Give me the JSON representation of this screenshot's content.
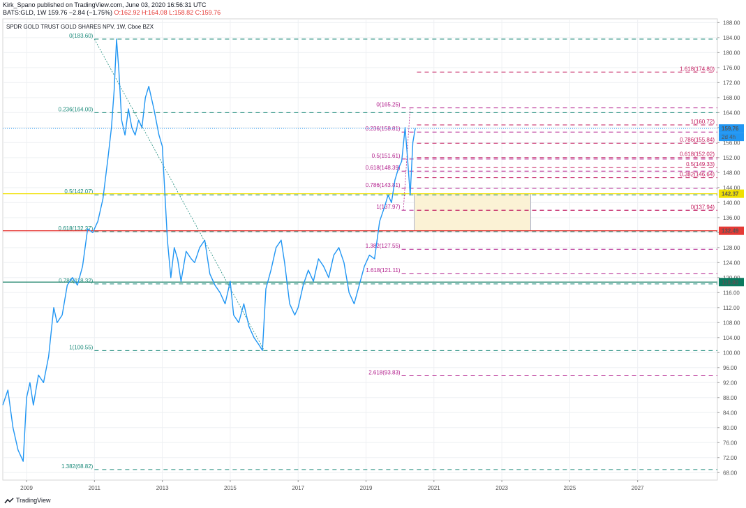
{
  "header": {
    "line1": "Kirk_Spano published on TradingView.com, June 03, 2020 16:56:31 UTC",
    "symbol": "BATS:GLD, 1W",
    "last": "159.76",
    "change": "−2.84 (−1.75%)",
    "o_label": "O:",
    "o": "162.92",
    "h_label": "H:",
    "h": "164.08",
    "l_label": "L:",
    "l": "158.82",
    "c_label": "C:",
    "c": "159.76"
  },
  "legend_title": "SPDR GOLD TRUST GOLD SHARES NPV, 1W, Cboe BZX",
  "footer": {
    "brand": "TradingView"
  },
  "colors": {
    "price": "#2196f3",
    "teal": "#1b8a7a",
    "magenta": "#b01a8a",
    "pink": "#c2185b",
    "yellow": "#f0e000",
    "red": "#e53935",
    "green": "#0b7a5f",
    "zone": "#fbf2d5"
  },
  "chart_data": {
    "type": "line",
    "title": "SPDR GOLD TRUST GOLD SHARES NPV, 1W, Cboe BZX",
    "xlabel": "",
    "ylabel": "",
    "ylim": [
      66,
      189
    ],
    "xlim": [
      2008.3,
      2029.35
    ],
    "x_ticks": [
      "2009",
      "2011",
      "2013",
      "2015",
      "2017",
      "2019",
      "2021",
      "2023",
      "2025",
      "2027"
    ],
    "y_ticks": [
      "188.00",
      "184.00",
      "180.00",
      "176.00",
      "172.00",
      "168.00",
      "164.00",
      "160.00",
      "156.00",
      "152.00",
      "148.00",
      "144.00",
      "140.00",
      "136.00",
      "132.00",
      "128.00",
      "124.00",
      "120.00",
      "116.00",
      "112.00",
      "108.00",
      "104.00",
      "100.00",
      "96.00",
      "92.00",
      "88.00",
      "84.00",
      "80.00",
      "76.00",
      "72.00",
      "68.00"
    ],
    "grid": true,
    "series": [
      {
        "x": [
          2008.3,
          2008.45,
          2008.6,
          2008.75,
          2008.9,
          2009.0,
          2009.1,
          2009.2,
          2009.35,
          2009.5,
          2009.65,
          2009.8,
          2009.9,
          2010.05,
          2010.2,
          2010.35,
          2010.5,
          2010.65,
          2010.8,
          2010.95,
          2011.1,
          2011.25,
          2011.4,
          2011.5,
          2011.58,
          2011.65,
          2011.72,
          2011.8,
          2011.9,
          2012.0,
          2012.1,
          2012.2,
          2012.3,
          2012.4,
          2012.5,
          2012.6,
          2012.75,
          2012.9,
          2013.0,
          2013.15,
          2013.25,
          2013.35,
          2013.45,
          2013.55,
          2013.7,
          2013.85,
          2013.95,
          2014.1,
          2014.25,
          2014.4,
          2014.55,
          2014.7,
          2014.85,
          2015.0,
          2015.1,
          2015.25,
          2015.4,
          2015.55,
          2015.7,
          2015.85,
          2015.95,
          2016.05,
          2016.2,
          2016.35,
          2016.5,
          2016.6,
          2016.75,
          2016.9,
          2017.0,
          2017.15,
          2017.3,
          2017.45,
          2017.6,
          2017.75,
          2017.9,
          2018.05,
          2018.2,
          2018.35,
          2018.5,
          2018.65,
          2018.8,
          2018.95,
          2019.1,
          2019.25,
          2019.4,
          2019.55,
          2019.65,
          2019.75,
          2019.85,
          2019.95,
          2020.05,
          2020.15,
          2020.22,
          2020.3,
          2020.38,
          2020.45
        ],
        "values": [
          86,
          90,
          80,
          74,
          71,
          88,
          92,
          86,
          94,
          92,
          99,
          112,
          108,
          110,
          118,
          120,
          118,
          123,
          133,
          132,
          135,
          141,
          152,
          160,
          170,
          183.6,
          175,
          162,
          158,
          165,
          160,
          158,
          162,
          160,
          168,
          171,
          165,
          158,
          155,
          130,
          120,
          128,
          125,
          119,
          127,
          125,
          124,
          128,
          130,
          121,
          118,
          116,
          113,
          119,
          110,
          108,
          113,
          107,
          104,
          102,
          100.55,
          117,
          122,
          128,
          130,
          124,
          113,
          110,
          112,
          118,
          122,
          119,
          125,
          123,
          120,
          126,
          128,
          124,
          116,
          113,
          118,
          123,
          126,
          125,
          135,
          139,
          142,
          140,
          146,
          149,
          151,
          160,
          152,
          142,
          156,
          159.76
        ],
        "color": "#2196f3"
      }
    ],
    "fib_left": {
      "color": "#1b8a7a",
      "levels": [
        {
          "label": "0(183.60)",
          "value": 183.6
        },
        {
          "label": "0.236(164.00)",
          "value": 164.0
        },
        {
          "label": "0.5(142.07)",
          "value": 142.07
        },
        {
          "label": "0.618(132.27)",
          "value": 132.27
        },
        {
          "label": "0.786(118.32)",
          "value": 118.32
        },
        {
          "label": "1(100.55)",
          "value": 100.55
        },
        {
          "label": "1.382(68.82)",
          "value": 68.82
        }
      ]
    },
    "fib_right_retracement": {
      "color": "#b01a8a",
      "levels": [
        {
          "label": "0(165.25)",
          "value": 165.25
        },
        {
          "label": "0.236(158.81)",
          "value": 158.81
        },
        {
          "label": "0.5(151.61)",
          "value": 151.61
        },
        {
          "label": "0.618(148.39)",
          "value": 148.39
        },
        {
          "label": "0.786(143.81)",
          "value": 143.81
        },
        {
          "label": "1(137.97)",
          "value": 137.97
        },
        {
          "label": "1.382(127.55)",
          "value": 127.55
        },
        {
          "label": "1.618(121.11)",
          "value": 121.11
        },
        {
          "label": "2.618(93.83)",
          "value": 93.83
        }
      ]
    },
    "fib_right_extension": {
      "color": "#c2185b",
      "levels": [
        {
          "label": "1.618(174.80)",
          "value": 174.8
        },
        {
          "label": "1(160.72)",
          "value": 160.72
        },
        {
          "label": "0.786(155.84)",
          "value": 155.84
        },
        {
          "label": "0.618(152.02)",
          "value": 152.02
        },
        {
          "label": "0.5(149.33)",
          "value": 149.33
        },
        {
          "label": "0.382(146.64)",
          "value": 146.64
        },
        {
          "label": "0(137.94)",
          "value": 137.94
        }
      ]
    },
    "horizontal_lines": [
      {
        "value": 159.76,
        "color": "#2196f3",
        "badge": "159.76",
        "sub_badge": "2d 4h"
      },
      {
        "value": 142.37,
        "color": "#f0e000",
        "badge": "142.37"
      },
      {
        "value": 132.49,
        "color": "#e53935",
        "badge": "132.49"
      },
      {
        "value": 118.8,
        "color": "#0b7a5f",
        "badge": "118.80"
      }
    ],
    "zone": {
      "x_start": 2020.42,
      "x_end": 2023.85,
      "y_top": 142.37,
      "y_bottom": 132.49,
      "color": "#fbf2d5"
    }
  }
}
